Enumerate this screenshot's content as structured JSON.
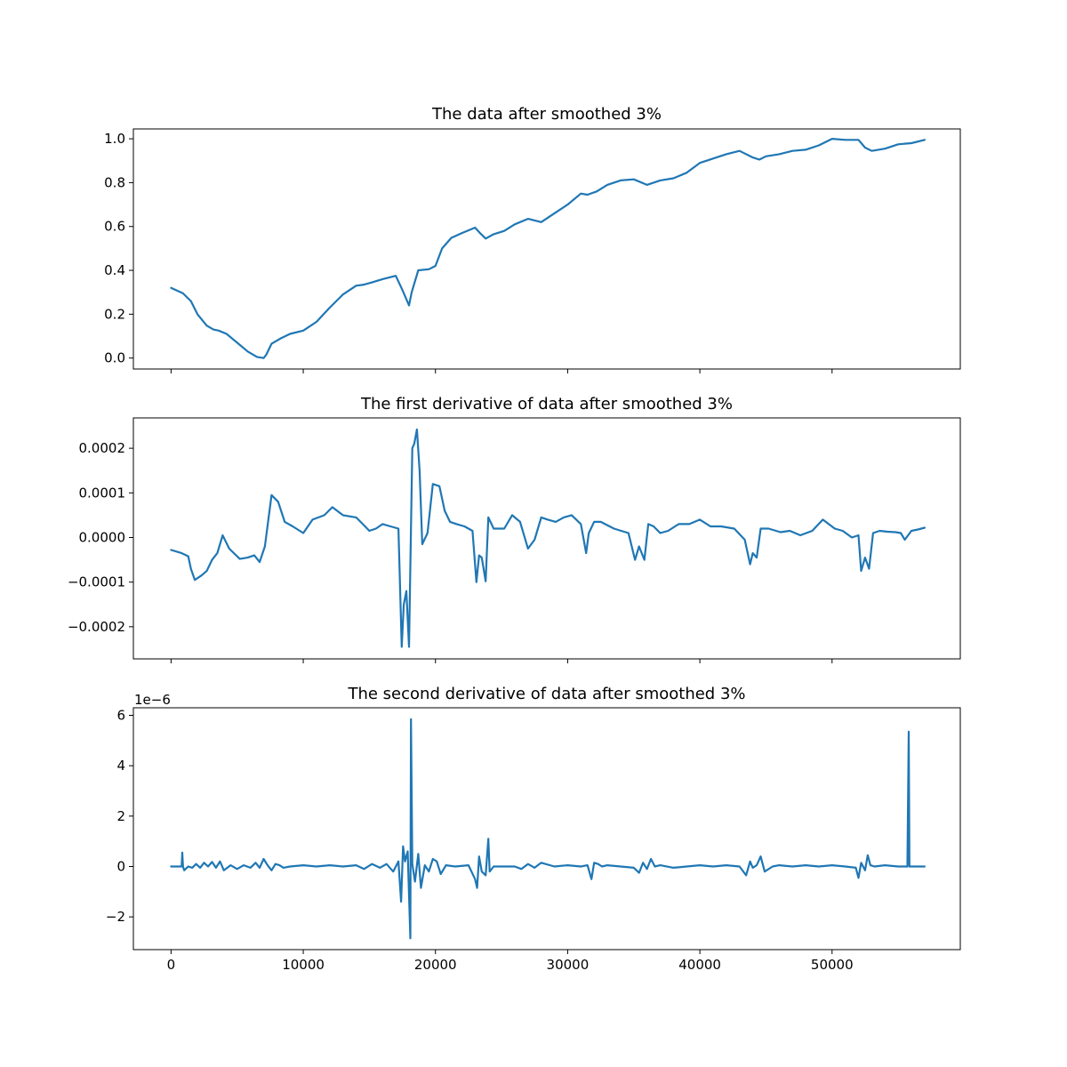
{
  "colors": {
    "series": "#1f77b4",
    "axes": "#000000",
    "background": "#ffffff"
  },
  "chart_data": [
    {
      "type": "line",
      "title": "The data after smoothed 3%",
      "xlabel": "",
      "ylabel": "",
      "xlim": [
        -2850,
        59700
      ],
      "ylim": [
        -0.05,
        1.045
      ],
      "grid": false,
      "x_ticks": [
        0,
        10000,
        20000,
        30000,
        40000,
        50000
      ],
      "x_tick_labels_visible": false,
      "y_ticks": [
        0.0,
        0.2,
        0.4,
        0.6,
        0.8,
        1.0
      ],
      "y_tick_labels": [
        "0.0",
        "0.2",
        "0.4",
        "0.6",
        "0.8",
        "1.0"
      ],
      "series": [
        {
          "x": [
            0,
            900,
            1500,
            2000,
            2700,
            3200,
            3600,
            4200,
            5000,
            5800,
            6500,
            7000,
            7200,
            7600,
            8300,
            9000,
            10000,
            11000,
            12000,
            13000,
            14000,
            14600,
            15200,
            16000,
            17000,
            17500,
            18000,
            18200,
            18700,
            19500,
            20000,
            20500,
            21200,
            22000,
            23000,
            23400,
            23800,
            24400,
            25200,
            26000,
            27000,
            28000,
            29000,
            30000,
            31000,
            31500,
            32200,
            33000,
            34000,
            35000,
            36000,
            37000,
            38000,
            39000,
            40000,
            41000,
            42000,
            43000,
            44000,
            44500,
            45000,
            46000,
            47000,
            48000,
            49000,
            50000,
            51000,
            52000,
            52500,
            53000,
            54000,
            55000,
            56000,
            57000
          ],
          "y": [
            0.32,
            0.295,
            0.26,
            0.2,
            0.148,
            0.13,
            0.125,
            0.11,
            0.07,
            0.03,
            0.005,
            0.0,
            0.015,
            0.065,
            0.09,
            0.11,
            0.125,
            0.165,
            0.23,
            0.29,
            0.33,
            0.335,
            0.345,
            0.36,
            0.375,
            0.31,
            0.24,
            0.3,
            0.4,
            0.405,
            0.42,
            0.5,
            0.548,
            0.57,
            0.595,
            0.568,
            0.545,
            0.565,
            0.58,
            0.61,
            0.635,
            0.62,
            0.66,
            0.7,
            0.75,
            0.745,
            0.76,
            0.79,
            0.81,
            0.815,
            0.79,
            0.81,
            0.82,
            0.845,
            0.89,
            0.91,
            0.93,
            0.945,
            0.915,
            0.905,
            0.92,
            0.93,
            0.945,
            0.95,
            0.97,
            1.0,
            0.995,
            0.995,
            0.96,
            0.945,
            0.955,
            0.975,
            0.98,
            0.995
          ]
        }
      ]
    },
    {
      "type": "line",
      "title": "The first derivative of data after smoothed 3%",
      "xlabel": "",
      "ylabel": "",
      "xlim": [
        -2850,
        59700
      ],
      "ylim": [
        -0.000272,
        0.000268
      ],
      "grid": false,
      "x_ticks": [
        0,
        10000,
        20000,
        30000,
        40000,
        50000
      ],
      "x_tick_labels_visible": false,
      "y_ticks": [
        -0.0002,
        -0.0001,
        0.0,
        0.0001,
        0.0002
      ],
      "y_tick_labels": [
        "−0.0002",
        "−0.0001",
        "0.0000",
        "0.0001",
        "0.0002"
      ],
      "series": [
        {
          "x": [
            0,
            800,
            1300,
            1500,
            1800,
            2300,
            2700,
            3100,
            3500,
            3900,
            4400,
            5200,
            5800,
            6300,
            6700,
            7100,
            7600,
            8100,
            8600,
            9200,
            10000,
            10700,
            11600,
            12200,
            13000,
            14000,
            14500,
            15000,
            15500,
            16000,
            16600,
            17200,
            17450,
            17600,
            17800,
            18000,
            18250,
            18400,
            18600,
            18800,
            19000,
            19400,
            19800,
            20300,
            20700,
            21100,
            21600,
            22200,
            22800,
            23100,
            23300,
            23500,
            23800,
            24000,
            24400,
            25200,
            25800,
            26400,
            27000,
            27500,
            28000,
            28500,
            29100,
            29700,
            30300,
            31000,
            31400,
            31600,
            32000,
            32500,
            33500,
            34600,
            35100,
            35400,
            35800,
            36100,
            36500,
            37000,
            37600,
            38400,
            39200,
            40000,
            40800,
            41600,
            42600,
            43400,
            43800,
            44000,
            44300,
            44600,
            45200,
            46100,
            46800,
            47600,
            48500,
            49300,
            50200,
            50800,
            51500,
            52000,
            52200,
            52500,
            52800,
            53100,
            53600,
            54200,
            54800,
            55200,
            55500,
            56000,
            56500,
            57000
          ],
          "y": [
            -2.8e-05,
            -3.5e-05,
            -4.2e-05,
            -7e-05,
            -9.5e-05,
            -8.5e-05,
            -7.5e-05,
            -5e-05,
            -3.5e-05,
            5e-06,
            -2.5e-05,
            -4.8e-05,
            -4.5e-05,
            -4e-05,
            -5.5e-05,
            -2e-05,
            9.5e-05,
            8e-05,
            3.5e-05,
            2.5e-05,
            1e-05,
            4e-05,
            5e-05,
            6.8e-05,
            5e-05,
            4.5e-05,
            3e-05,
            1.5e-05,
            2e-05,
            3e-05,
            2.5e-05,
            2e-05,
            -0.000245,
            -0.00015,
            -0.00012,
            -0.000245,
            0.0002,
            0.00021,
            0.000242,
            0.00015,
            -1.5e-05,
            1e-05,
            0.00012,
            0.000115,
            6e-05,
            3.5e-05,
            3e-05,
            2.5e-05,
            1.5e-05,
            -0.0001,
            -4e-05,
            -4.5e-05,
            -9.8e-05,
            4.5e-05,
            2e-05,
            2e-05,
            5e-05,
            3.5e-05,
            -2.5e-05,
            -5e-06,
            4.5e-05,
            4e-05,
            3.5e-05,
            4.5e-05,
            5e-05,
            3e-05,
            -3.5e-05,
            1e-05,
            3.5e-05,
            3.5e-05,
            2e-05,
            1e-05,
            -5e-05,
            -2e-05,
            -5e-05,
            3e-05,
            2.5e-05,
            1e-05,
            1.5e-05,
            3e-05,
            3e-05,
            4e-05,
            2.5e-05,
            2.5e-05,
            2e-05,
            -5e-06,
            -6e-05,
            -3.5e-05,
            -4.5e-05,
            2e-05,
            2e-05,
            1.2e-05,
            1.5e-05,
            5e-06,
            1.5e-05,
            4e-05,
            2e-05,
            1.5e-05,
            0.0,
            5e-06,
            -7.5e-05,
            -4.5e-05,
            -7e-05,
            1e-05,
            1.5e-05,
            1.3e-05,
            1.2e-05,
            1e-05,
            -5e-06,
            1.5e-05,
            1.8e-05,
            2.2e-05
          ]
        }
      ]
    },
    {
      "type": "line",
      "title": "The second derivative of data after smoothed 3%",
      "xlabel": "",
      "ylabel": "",
      "xlim": [
        -2850,
        59700
      ],
      "ylim": [
        -3.3,
        6.3
      ],
      "y_offset_label": "1e−6",
      "grid": false,
      "x_ticks": [
        0,
        10000,
        20000,
        30000,
        40000,
        50000
      ],
      "x_tick_labels": [
        "0",
        "10000",
        "20000",
        "30000",
        "40000",
        "50000"
      ],
      "y_ticks": [
        -2,
        0,
        2,
        4,
        6
      ],
      "y_tick_labels": [
        "−2",
        "0",
        "2",
        "4",
        "6"
      ],
      "series": [
        {
          "x": [
            0,
            800,
            850,
            900,
            1000,
            1300,
            1600,
            1900,
            2200,
            2500,
            2800,
            3100,
            3400,
            3700,
            4000,
            4500,
            5000,
            5500,
            6000,
            6400,
            6700,
            7000,
            7300,
            7600,
            7900,
            8200,
            8500,
            9000,
            10000,
            11000,
            12000,
            13000,
            14000,
            14600,
            15200,
            15800,
            16300,
            16800,
            17200,
            17400,
            17550,
            17700,
            17900,
            18100,
            18150,
            18250,
            18450,
            18700,
            18900,
            19200,
            19500,
            19800,
            20100,
            20400,
            20800,
            21500,
            22500,
            23000,
            23150,
            23300,
            23500,
            23800,
            24000,
            24100,
            24400,
            25000,
            26000,
            26500,
            27000,
            27500,
            28000,
            29000,
            30000,
            31000,
            31500,
            31800,
            32000,
            32300,
            32600,
            33000,
            34000,
            35000,
            35400,
            35700,
            36000,
            36300,
            36600,
            37000,
            38000,
            39000,
            40000,
            41000,
            42000,
            43000,
            43500,
            43800,
            44000,
            44300,
            44600,
            44900,
            45500,
            46000,
            47000,
            48000,
            49000,
            50000,
            51000,
            51800,
            52000,
            52200,
            52500,
            52700,
            52900,
            53200,
            54000,
            55000,
            55700,
            55800,
            55850,
            55900,
            56000,
            57000
          ],
          "y": [
            0.0,
            0.0,
            0.55,
            0.0,
            -0.15,
            0.0,
            -0.05,
            0.1,
            -0.05,
            0.15,
            0.0,
            0.18,
            -0.05,
            0.2,
            -0.15,
            0.05,
            -0.1,
            0.05,
            -0.05,
            0.15,
            -0.05,
            0.3,
            0.05,
            -0.15,
            0.1,
            0.05,
            -0.05,
            0.0,
            0.05,
            0.0,
            0.05,
            0.0,
            0.05,
            -0.1,
            0.1,
            -0.05,
            0.1,
            -0.2,
            0.2,
            -1.4,
            0.8,
            0.2,
            0.6,
            -2.85,
            5.85,
            0.1,
            -0.6,
            0.5,
            -0.85,
            0.05,
            -0.2,
            0.3,
            0.2,
            -0.3,
            0.05,
            0.0,
            0.05,
            -0.5,
            -0.85,
            0.4,
            -0.2,
            -0.35,
            1.1,
            -0.2,
            0.0,
            0.0,
            0.0,
            -0.1,
            0.1,
            -0.05,
            0.15,
            0.0,
            0.05,
            0.0,
            0.05,
            -0.5,
            0.15,
            0.1,
            0.0,
            0.05,
            0.0,
            -0.05,
            -0.25,
            0.15,
            -0.1,
            0.3,
            0.0,
            0.05,
            -0.05,
            0.0,
            0.05,
            0.0,
            0.05,
            0.0,
            -0.35,
            0.2,
            -0.05,
            0.05,
            0.4,
            -0.2,
            0.0,
            0.05,
            0.0,
            0.05,
            0.0,
            0.05,
            0.0,
            -0.05,
            -0.45,
            0.15,
            -0.15,
            0.45,
            0.05,
            0.0,
            0.05,
            0.0,
            0.0,
            5.35,
            0.0,
            0.0,
            0.0,
            0.0
          ]
        }
      ]
    }
  ]
}
